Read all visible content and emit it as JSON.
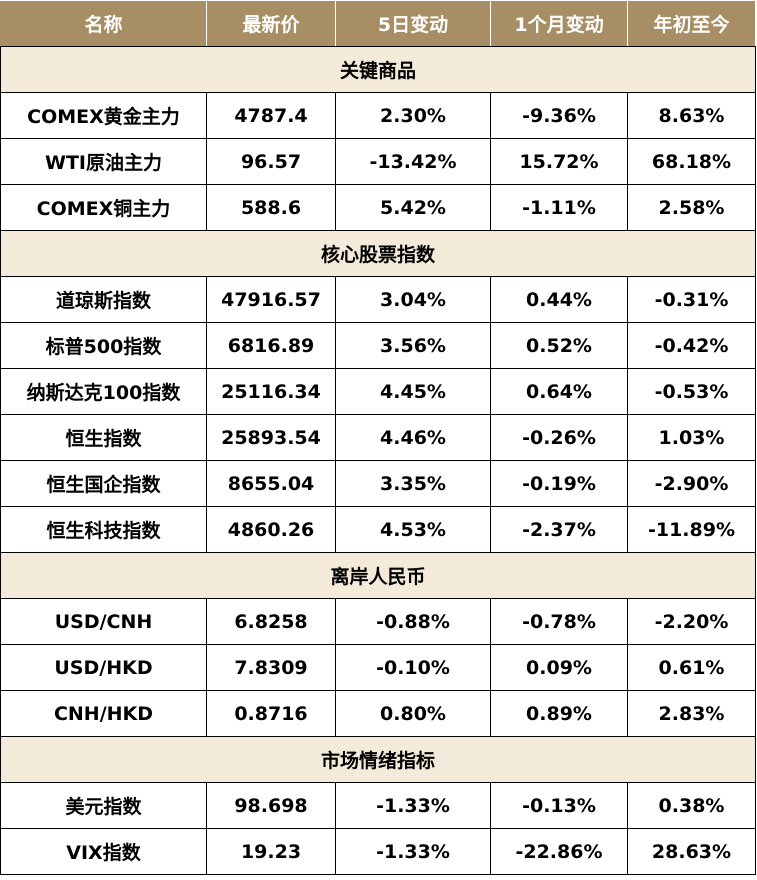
{
  "header": {
    "columns": [
      "名称",
      "最新价",
      "5日变动",
      "1个月变动",
      "年初至今"
    ]
  },
  "colors": {
    "header_bg": "#a78e64",
    "section_bg": "#f3ead9",
    "positive": "#22a24b",
    "negative": "#e21a1a"
  },
  "sections": [
    {
      "title": "关键商品",
      "rows": [
        {
          "name": "COMEX黄金主力",
          "price": "4787.4",
          "d5": "2.30%",
          "m1": "-9.36%",
          "ytd": "8.63%"
        },
        {
          "name": "WTI原油主力",
          "price": "96.57",
          "d5": "-13.42%",
          "m1": "15.72%",
          "ytd": "68.18%"
        },
        {
          "name": "COMEX铜主力",
          "price": "588.6",
          "d5": "5.42%",
          "m1": "-1.11%",
          "ytd": "2.58%"
        }
      ]
    },
    {
      "title": "核心股票指数",
      "rows": [
        {
          "name": "道琼斯指数",
          "price": "47916.57",
          "d5": "3.04%",
          "m1": "0.44%",
          "ytd": "-0.31%"
        },
        {
          "name": "标普500指数",
          "price": "6816.89",
          "d5": "3.56%",
          "m1": "0.52%",
          "ytd": "-0.42%"
        },
        {
          "name": "纳斯达克100指数",
          "price": "25116.34",
          "d5": "4.45%",
          "m1": "0.64%",
          "ytd": "-0.53%"
        },
        {
          "name": "恒生指数",
          "price": "25893.54",
          "d5": "4.46%",
          "m1": "-0.26%",
          "ytd": "1.03%"
        },
        {
          "name": "恒生国企指数",
          "price": "8655.04",
          "d5": "3.35%",
          "m1": "-0.19%",
          "ytd": "-2.90%"
        },
        {
          "name": "恒生科技指数",
          "price": "4860.26",
          "d5": "4.53%",
          "m1": "-2.37%",
          "ytd": "-11.89%"
        }
      ]
    },
    {
      "title": "离岸人民币",
      "rows": [
        {
          "name": "USD/CNH",
          "price": "6.8258",
          "d5": "-0.88%",
          "m1": "-0.78%",
          "ytd": "-2.20%"
        },
        {
          "name": "USD/HKD",
          "price": "7.8309",
          "d5": "-0.10%",
          "m1": "0.09%",
          "ytd": "0.61%"
        },
        {
          "name": "CNH/HKD",
          "price": "0.8716",
          "d5": "0.80%",
          "m1": "0.89%",
          "ytd": "2.83%"
        }
      ]
    },
    {
      "title": "市场情绪指标",
      "rows": [
        {
          "name": "美元指数",
          "price": "98.698",
          "d5": "-1.33%",
          "m1": "-0.13%",
          "ytd": "0.38%"
        },
        {
          "name": "VIX指数",
          "price": "19.23",
          "d5": "-1.33%",
          "m1": "-22.86%",
          "ytd": "28.63%"
        }
      ]
    }
  ]
}
